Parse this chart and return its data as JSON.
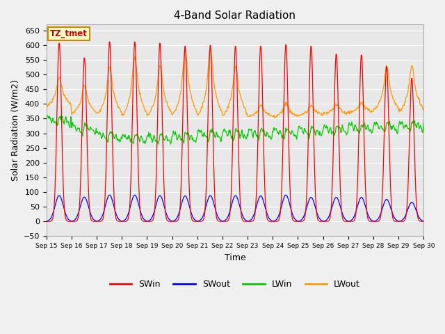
{
  "title": "4-Band Solar Radiation",
  "xlabel": "Time",
  "ylabel": "Solar Radiation (W/m2)",
  "ylim": [
    -50,
    670
  ],
  "x_tick_labels": [
    "Sep 15",
    "Sep 16",
    "Sep 17",
    "Sep 18",
    "Sep 19",
    "Sep 20",
    "Sep 21",
    "Sep 22",
    "Sep 23",
    "Sep 24",
    "Sep 25",
    "Sep 26",
    "Sep 27",
    "Sep 28",
    "Sep 29",
    "Sep 30"
  ],
  "annotation_text": "TZ_tmet",
  "annotation_color": "#cc0000",
  "annotation_bg": "#ffffcc",
  "annotation_border": "#cc8800",
  "colors": {
    "SWin": "#ff0000",
    "SWout": "#0000ff",
    "LWin": "#00cc00",
    "LWout": "#ff9900"
  },
  "plot_bg_color": "#e8e8e8",
  "fig_bg_color": "#f0f0f0",
  "grid_color": "#ffffff",
  "title_fontsize": 11,
  "yticks": [
    -50,
    0,
    50,
    100,
    150,
    200,
    250,
    300,
    350,
    400,
    450,
    500,
    550,
    600,
    650
  ],
  "SWin_peaks": [
    610,
    560,
    615,
    615,
    610,
    600,
    603,
    600,
    600,
    605,
    600,
    573,
    570,
    530,
    490
  ],
  "SWout_peaks": [
    88,
    83,
    90,
    90,
    88,
    87,
    88,
    88,
    87,
    90,
    82,
    82,
    82,
    75,
    65
  ],
  "LWout_night": [
    390,
    365,
    360,
    355,
    355,
    355,
    355,
    355,
    355,
    355,
    360,
    365,
    370,
    375,
    370
  ],
  "LWout_day_peaks": [
    480,
    450,
    505,
    535,
    510,
    550,
    555,
    510,
    390,
    395,
    390,
    395,
    400,
    510,
    510
  ],
  "LWin_base": [
    345,
    315,
    290,
    283,
    283,
    288,
    295,
    298,
    300,
    302,
    308,
    312,
    318,
    322,
    326
  ]
}
